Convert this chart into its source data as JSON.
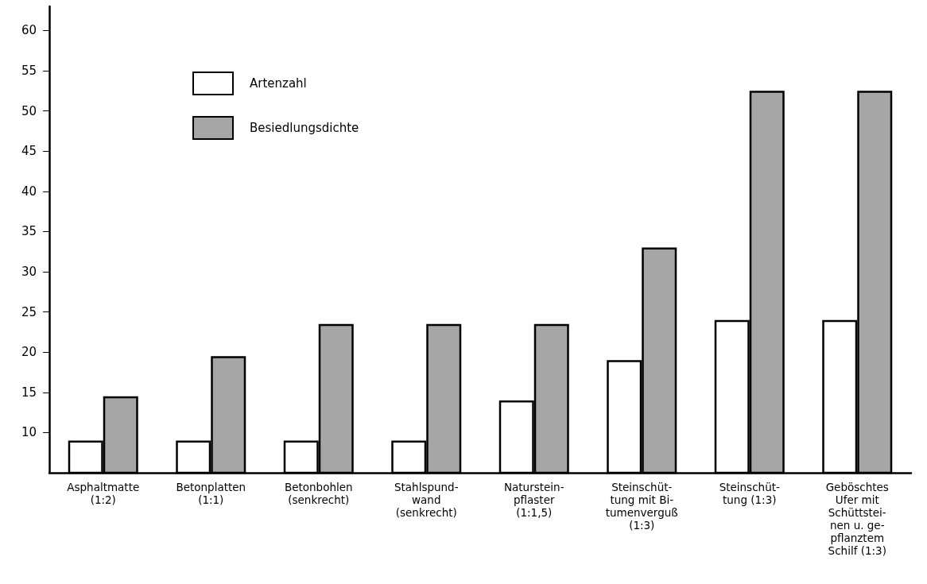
{
  "chart_data": {
    "type": "bar",
    "categories": [
      "Asphaltmatte\n(1:2)",
      "Betonplatten\n(1:1)",
      "Betonbohlen\n(senkrecht)",
      "Stahlspund-\nwand\n(senkrecht)",
      "Naturstein-\npflaster\n(1:1,5)",
      "Steinschüt-\ntung mit Bi-\ntumenverguß\n(1:3)",
      "Steinschüt-\ntung (1:3)",
      "Geböschtes\nUfer mit\nSchüttstei-\nnen u. ge-\npflanztem\nSchilf (1:3)"
    ],
    "series": [
      {
        "name": "Artenzahl",
        "color": "#ffffff",
        "values": [
          9,
          9,
          9,
          9,
          14,
          19,
          24,
          24
        ]
      },
      {
        "name": "Besiedlungsdichte",
        "color": "#a6a6a6",
        "values": [
          14.5,
          19.5,
          23.5,
          23.5,
          23.5,
          33,
          52.5,
          52.5
        ]
      }
    ],
    "ylim": [
      5,
      63
    ],
    "yticks": [
      10,
      15,
      20,
      25,
      30,
      35,
      40,
      45,
      50,
      55,
      60
    ],
    "grid": false,
    "legend": "top left"
  }
}
